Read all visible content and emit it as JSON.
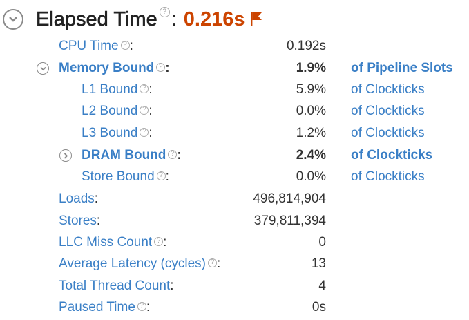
{
  "header": {
    "title": "Elapsed Time",
    "help": "?",
    "colon": ":",
    "value": "0.216s"
  },
  "metrics": {
    "cpu_time": {
      "label": "CPU Time",
      "value": "0.192s"
    },
    "memory_bound": {
      "label": "Memory Bound",
      "value": "1.9%",
      "unit": "of Pipeline Slots"
    },
    "l1_bound": {
      "label": "L1 Bound",
      "value": "5.9%",
      "unit": "of Clockticks"
    },
    "l2_bound": {
      "label": "L2 Bound",
      "value": "0.0%",
      "unit": "of Clockticks"
    },
    "l3_bound": {
      "label": "L3 Bound",
      "value": "1.2%",
      "unit": "of Clockticks"
    },
    "dram_bound": {
      "label": "DRAM Bound",
      "value": "2.4%",
      "unit": "of Clockticks"
    },
    "store_bound": {
      "label": "Store Bound",
      "value": "0.0%",
      "unit": "of Clockticks"
    },
    "loads": {
      "label": "Loads",
      "value": "496,814,904"
    },
    "stores": {
      "label": "Stores",
      "value": "379,811,394"
    },
    "llc_miss_count": {
      "label": "LLC Miss Count",
      "value": "0"
    },
    "average_latency": {
      "label": "Average Latency (cycles)",
      "value": "13"
    },
    "total_thread_count": {
      "label": "Total Thread Count",
      "value": "4"
    },
    "paused_time": {
      "label": "Paused Time",
      "value": "0s"
    }
  },
  "colors": {
    "link": "#3a7fc6",
    "elapsed_value": "#cc4400",
    "flag": "#cc4400",
    "icon_gray": "#8a8a8a"
  },
  "icons": {
    "header_toggle": "chevron-down-circle-icon",
    "memory_toggle": "chevron-down-circle-icon",
    "dram_toggle": "chevron-right-circle-icon",
    "flag": "flag-icon",
    "help": "help-icon"
  }
}
